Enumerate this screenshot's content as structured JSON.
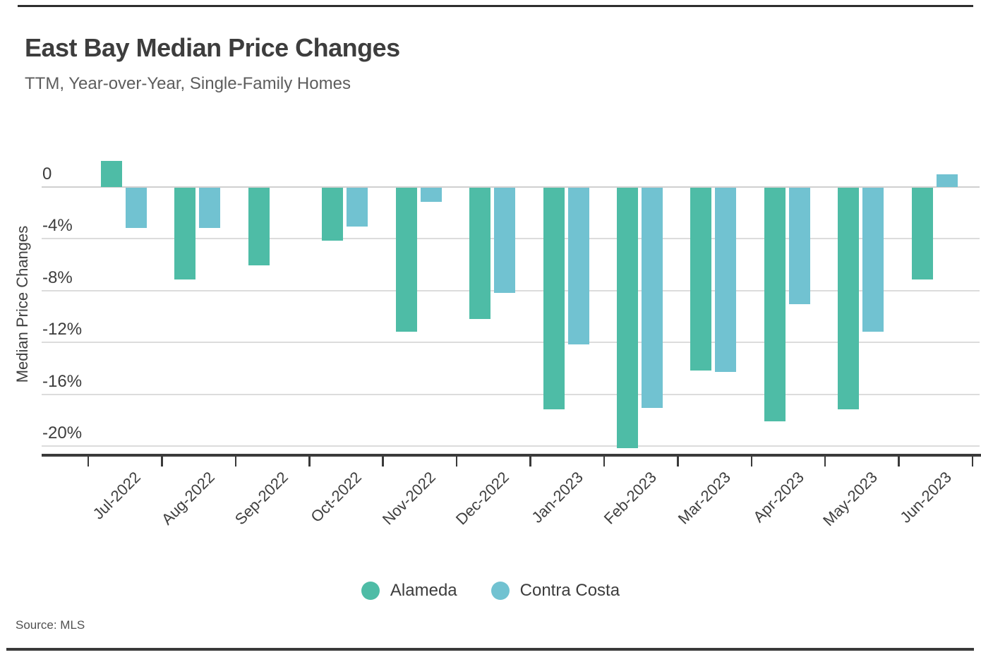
{
  "chart_data": {
    "type": "bar",
    "title": "East Bay Median Price Changes",
    "subtitle": "TTM, Year-over-Year, Single-Family Homes",
    "ylabel": "Median Price Changes",
    "xlabel": "",
    "unit": "%",
    "categories": [
      "Jul-2022",
      "Aug-2022",
      "Sep-2022",
      "Oct-2022",
      "Nov-2022",
      "Dec-2022",
      "Jan-2023",
      "Feb-2023",
      "Mar-2023",
      "Apr-2023",
      "May-2023",
      "Jun-2023"
    ],
    "series": [
      {
        "name": "Alameda",
        "color": "#4ebca6",
        "values": [
          2.0,
          -7.1,
          -6.0,
          -4.1,
          -11.1,
          -10.1,
          -17.1,
          -20.1,
          -14.1,
          -18.0,
          -17.1,
          -7.1
        ]
      },
      {
        "name": "Contra Costa",
        "color": "#71c2d1",
        "values": [
          -3.1,
          -3.1,
          null,
          -3.0,
          -1.1,
          -8.1,
          -12.1,
          -17.0,
          -14.2,
          -9.0,
          -11.1,
          1.0
        ]
      }
    ],
    "y_ticks": [
      {
        "label": "0",
        "value": 0
      },
      {
        "label": "-4%",
        "value": -4
      },
      {
        "label": "-8%",
        "value": -8
      },
      {
        "label": "-12%",
        "value": -12
      },
      {
        "label": "-16%",
        "value": -16
      },
      {
        "label": "-20%",
        "value": -20
      }
    ],
    "ylim": [
      2.7,
      -20.7
    ],
    "grid": "horizontal",
    "legend_position": "bottom",
    "axis_color": "#3a3a3a",
    "grid_color": "#dcdcdc",
    "source": "Source: MLS"
  }
}
